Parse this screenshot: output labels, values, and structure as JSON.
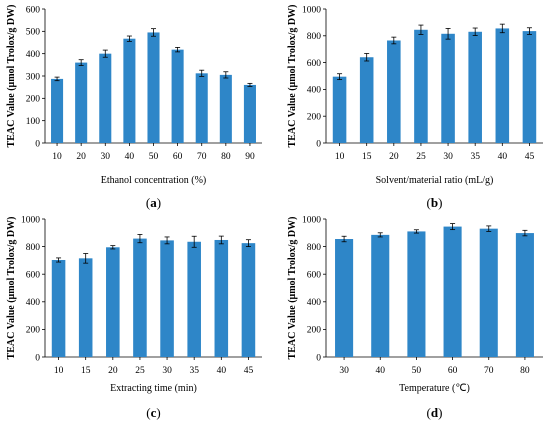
{
  "colors": {
    "bar": "#2e86c8",
    "axis": "#000000"
  },
  "chart_data": [
    {
      "type": "bar",
      "panel_label": "a",
      "xlabel": "Ethanol concentration (%)",
      "ylabel": "TEAC Value (μmol Trolox/g DW)",
      "categories": [
        "10",
        "20",
        "30",
        "40",
        "50",
        "60",
        "70",
        "80",
        "90"
      ],
      "values": [
        287,
        360,
        400,
        467,
        495,
        418,
        312,
        305,
        260
      ],
      "errors": [
        8,
        13,
        16,
        12,
        17,
        10,
        14,
        14,
        7
      ],
      "ylim": [
        0,
        600
      ],
      "yticks": [
        0,
        100,
        200,
        300,
        400,
        500,
        600
      ],
      "grid": false,
      "legend": "none"
    },
    {
      "type": "bar",
      "panel_label": "b",
      "xlabel": "Solvent/material ratio (mL/g)",
      "ylabel": "TEAC Value (μmol Trolox/g DW)",
      "categories": [
        "10",
        "15",
        "20",
        "25",
        "30",
        "35",
        "40",
        "45"
      ],
      "values": [
        495,
        640,
        765,
        845,
        815,
        830,
        855,
        835
      ],
      "errors": [
        22,
        28,
        25,
        35,
        40,
        28,
        32,
        25
      ],
      "ylim": [
        0,
        1000
      ],
      "yticks": [
        0,
        200,
        400,
        600,
        800,
        1000
      ],
      "grid": false,
      "legend": "none"
    },
    {
      "type": "bar",
      "panel_label": "c",
      "xlabel": "Extracting time (min)",
      "ylabel": "TEAC Value (μmol Trolox/g DW)",
      "categories": [
        "10",
        "15",
        "20",
        "25",
        "30",
        "35",
        "40",
        "45"
      ],
      "values": [
        703,
        715,
        795,
        858,
        845,
        835,
        848,
        825
      ],
      "errors": [
        15,
        35,
        12,
        30,
        25,
        40,
        28,
        25
      ],
      "ylim": [
        0,
        1000
      ],
      "yticks": [
        0,
        200,
        400,
        600,
        800,
        1000
      ],
      "grid": false,
      "legend": "none"
    },
    {
      "type": "bar",
      "panel_label": "d",
      "xlabel": "Temperature (℃)",
      "ylabel": "TEAC Value (μmol Trolox/g DW)",
      "categories": [
        "30",
        "40",
        "50",
        "60",
        "70",
        "80"
      ],
      "values": [
        855,
        885,
        910,
        945,
        930,
        898
      ],
      "errors": [
        20,
        15,
        12,
        22,
        20,
        20
      ],
      "ylim": [
        0,
        1000
      ],
      "yticks": [
        0,
        200,
        400,
        600,
        800,
        1000
      ],
      "grid": false,
      "legend": "none"
    }
  ]
}
